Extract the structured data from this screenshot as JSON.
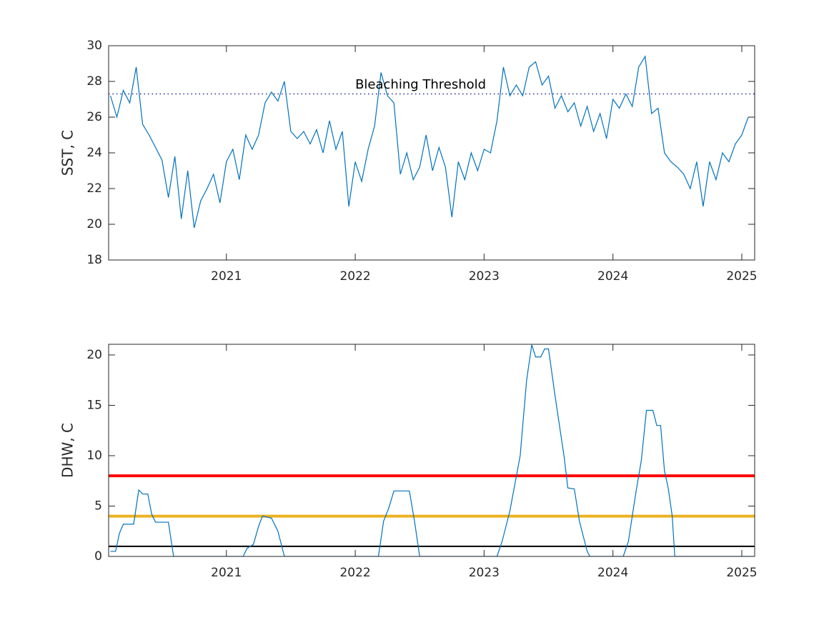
{
  "chart_data": [
    {
      "type": "line",
      "ylabel": "SST, C",
      "color": "#0072bd",
      "xlim": [
        2020.086,
        2025.1
      ],
      "xticks": [
        2021,
        2022,
        2023,
        2024,
        2025
      ],
      "ylim": [
        18,
        30
      ],
      "yticks": [
        18,
        20,
        22,
        24,
        26,
        28,
        30
      ],
      "x": [
        2020.1,
        2020.15,
        2020.2,
        2020.25,
        2020.3,
        2020.35,
        2020.4,
        2020.45,
        2020.5,
        2020.55,
        2020.6,
        2020.65,
        2020.7,
        2020.75,
        2020.8,
        2020.85,
        2020.9,
        2020.95,
        2021.0,
        2021.05,
        2021.1,
        2021.15,
        2021.2,
        2021.25,
        2021.3,
        2021.35,
        2021.4,
        2021.45,
        2021.5,
        2021.55,
        2021.6,
        2021.65,
        2021.7,
        2021.75,
        2021.8,
        2021.85,
        2021.9,
        2021.95,
        2022.0,
        2022.05,
        2022.1,
        2022.15,
        2022.2,
        2022.25,
        2022.3,
        2022.35,
        2022.4,
        2022.45,
        2022.5,
        2022.55,
        2022.6,
        2022.65,
        2022.7,
        2022.75,
        2022.8,
        2022.85,
        2022.9,
        2022.95,
        2023.0,
        2023.05,
        2023.1,
        2023.15,
        2023.2,
        2023.25,
        2023.3,
        2023.35,
        2023.4,
        2023.45,
        2023.5,
        2023.55,
        2023.6,
        2023.65,
        2023.7,
        2023.75,
        2023.8,
        2023.85,
        2023.9,
        2023.95,
        2024.0,
        2024.05,
        2024.1,
        2024.15,
        2024.2,
        2024.25,
        2024.3,
        2024.35,
        2024.4,
        2024.45,
        2024.5,
        2024.55,
        2024.6,
        2024.65,
        2024.7,
        2024.75,
        2024.8,
        2024.85,
        2024.9,
        2024.95,
        2025.0,
        2025.05
      ],
      "values": [
        27.2,
        26.0,
        27.5,
        26.8,
        28.8,
        25.6,
        25.0,
        24.3,
        23.6,
        21.5,
        23.8,
        20.3,
        23.0,
        19.8,
        21.3,
        22.0,
        22.8,
        21.2,
        23.5,
        24.2,
        22.5,
        25.0,
        24.2,
        25.0,
        26.8,
        27.4,
        26.9,
        28.0,
        25.2,
        24.8,
        25.2,
        24.5,
        25.3,
        24.0,
        25.8,
        24.2,
        25.2,
        21.0,
        23.5,
        22.4,
        24.2,
        25.5,
        28.5,
        27.2,
        26.8,
        22.8,
        24.0,
        22.5,
        23.2,
        25.0,
        23.0,
        24.3,
        23.2,
        20.4,
        23.5,
        22.5,
        24.0,
        23.0,
        24.2,
        24.0,
        25.8,
        28.8,
        27.2,
        27.8,
        27.2,
        28.8,
        29.1,
        27.8,
        28.3,
        26.5,
        27.2,
        26.3,
        26.8,
        25.5,
        26.6,
        25.2,
        26.2,
        24.8,
        27.0,
        26.5,
        27.3,
        26.6,
        28.8,
        29.4,
        26.2,
        26.5,
        24.0,
        23.5,
        23.2,
        22.8,
        22.0,
        23.5,
        21.0,
        23.5,
        22.5,
        24.0,
        23.5,
        24.5,
        25.0,
        26.0
      ],
      "threshold": {
        "value": 27.3,
        "color": "#00008b"
      },
      "annotation": {
        "text": "Bleaching Threshold",
        "x": 2022.0,
        "y": 27.8
      }
    },
    {
      "type": "line",
      "ylabel": "DHW, C",
      "color": "#0072bd",
      "xlim": [
        2020.086,
        2025.1
      ],
      "xticks": [
        2021,
        2022,
        2023,
        2024,
        2025
      ],
      "ylim": [
        0,
        21.06
      ],
      "yticks": [
        0,
        5,
        10,
        15,
        20
      ],
      "x": [
        2020.1,
        2020.14,
        2020.17,
        2020.2,
        2020.28,
        2020.32,
        2020.35,
        2020.39,
        2020.42,
        2020.45,
        2020.55,
        2020.59,
        2021.13,
        2021.16,
        2021.21,
        2021.25,
        2021.28,
        2021.35,
        2021.4,
        2021.45,
        2022.18,
        2022.22,
        2022.26,
        2022.3,
        2022.42,
        2022.46,
        2022.5,
        2023.1,
        2023.14,
        2023.2,
        2023.28,
        2023.33,
        2023.37,
        2023.4,
        2023.44,
        2023.47,
        2023.5,
        2023.55,
        2023.62,
        2023.65,
        2023.7,
        2023.74,
        2023.8,
        2023.82,
        2024.08,
        2024.12,
        2024.18,
        2024.22,
        2024.26,
        2024.31,
        2024.34,
        2024.37,
        2024.4,
        2024.43,
        2024.46,
        2024.48,
        2025.1
      ],
      "values": [
        0.5,
        0.5,
        2.3,
        3.2,
        3.2,
        6.6,
        6.2,
        6.2,
        4.2,
        3.4,
        3.4,
        0,
        0,
        0.8,
        1.2,
        3.0,
        4.0,
        3.8,
        2.5,
        0,
        0,
        3.5,
        4.8,
        6.5,
        6.5,
        3.5,
        0,
        0,
        1.5,
        4.5,
        10,
        17.5,
        21.0,
        19.8,
        19.8,
        20.6,
        20.6,
        16,
        10,
        6.8,
        6.7,
        3.5,
        0.5,
        0,
        0,
        1.5,
        6.5,
        9.5,
        14.5,
        14.5,
        13,
        13,
        8.5,
        6.7,
        4,
        0,
        0
      ],
      "hlines": [
        {
          "value": 1,
          "color": "#000000",
          "style": "thin"
        },
        {
          "value": 4,
          "color": "#edb120",
          "style": "thick"
        },
        {
          "value": 8,
          "color": "#ff0000",
          "style": "thick"
        }
      ]
    }
  ]
}
